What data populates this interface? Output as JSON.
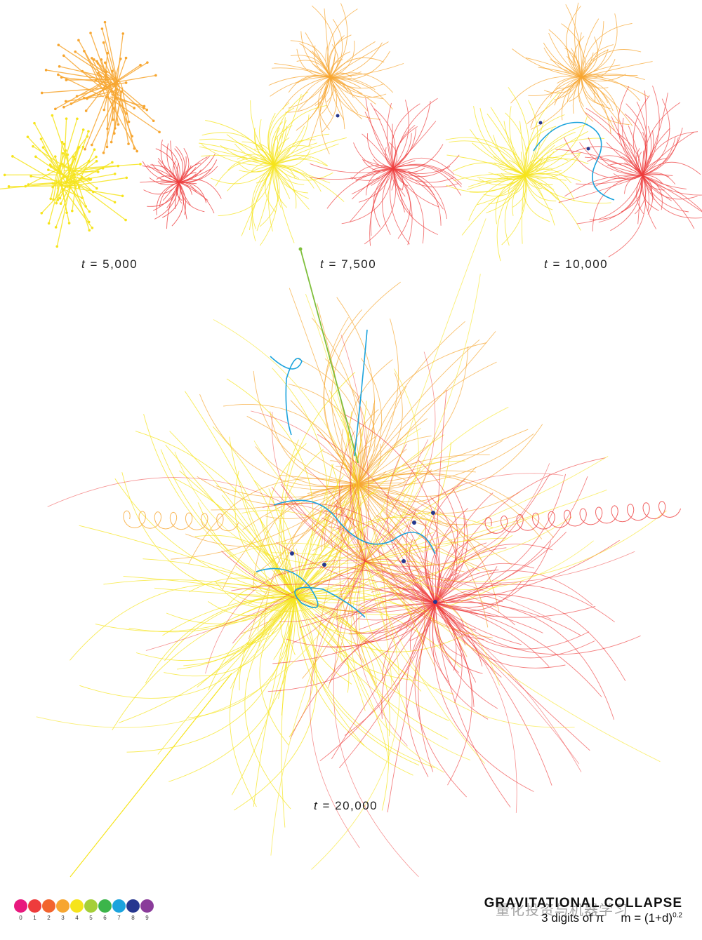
{
  "captions": {
    "c1": "5,000",
    "c2": "7,500",
    "c3": "10,000",
    "c4": "20,000",
    "t_symbol": "t",
    "eq": "="
  },
  "legend": {
    "digits": [
      "0",
      "1",
      "2",
      "3",
      "4",
      "5",
      "6",
      "7",
      "8",
      "9"
    ],
    "colors": [
      "#e8197e",
      "#ee3c3c",
      "#f2642e",
      "#f7a630",
      "#f6e41c",
      "#a5cf39",
      "#3cb54a",
      "#1ba3dd",
      "#26378f",
      "#8a3b9a"
    ]
  },
  "title": "GRAVITATIONAL COLLAPSE",
  "subtitle_left": "3 digits of π",
  "subtitle_right": "m = (1+d)",
  "subtitle_exp": "0.2",
  "watermark": "量化投资与机器学习",
  "palette": {
    "yellow": "#f6e41c",
    "orange": "#f7a630",
    "red": "#ee3c3c",
    "green": "#7fbf3c",
    "blue": "#1ba3dd",
    "navy": "#26378f"
  }
}
